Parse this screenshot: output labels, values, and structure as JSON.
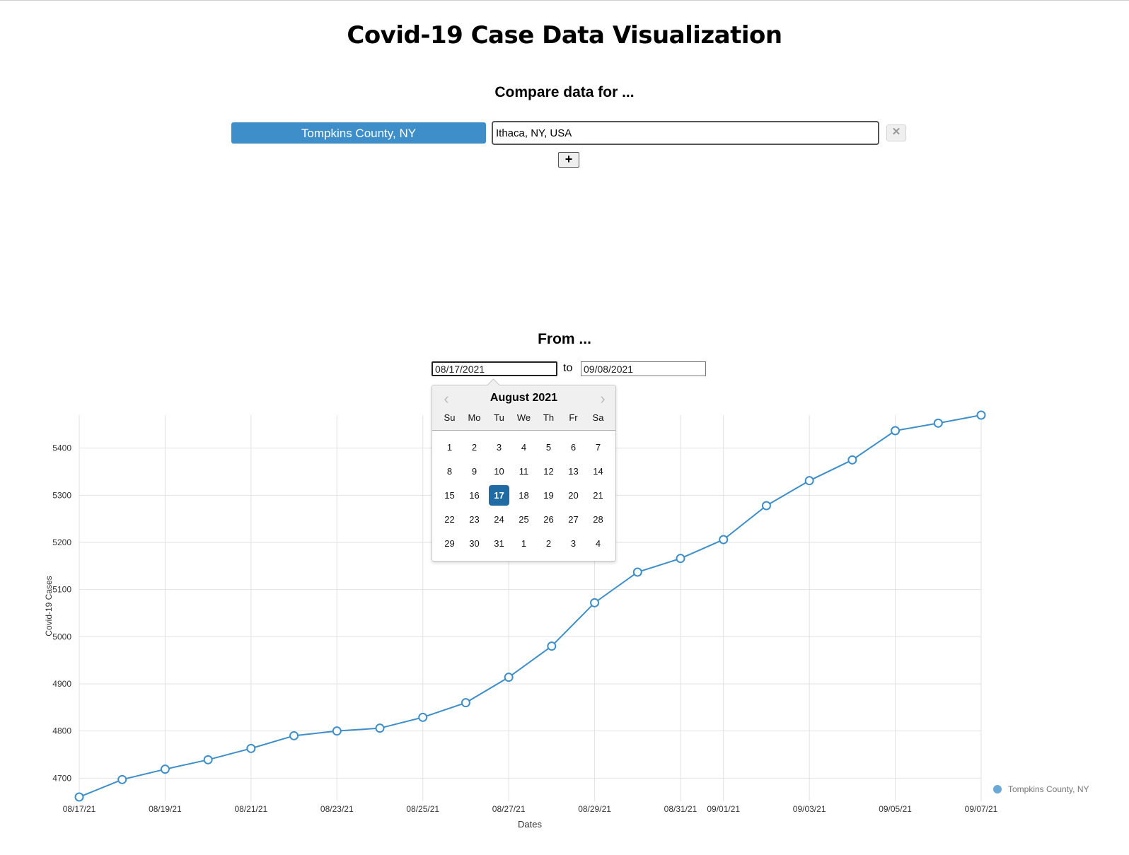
{
  "page": {
    "title": "Covid-19 Case Data Visualization",
    "compare_heading": "Compare data for ...",
    "from_heading": "From ..."
  },
  "compare": {
    "location_button_label": "Tompkins County, NY",
    "location_input_value": "Ithaca, NY, USA",
    "remove_label": "✕",
    "add_label": "+"
  },
  "date_range": {
    "from_value": "08/17/2021",
    "to_label": "to",
    "to_value": "09/08/2021"
  },
  "datepicker": {
    "month_label": "August 2021",
    "prev_icon": "‹",
    "next_icon": "›",
    "weekdays": [
      "Su",
      "Mo",
      "Tu",
      "We",
      "Th",
      "Fr",
      "Sa"
    ],
    "weeks": [
      [
        "1",
        "2",
        "3",
        "4",
        "5",
        "6",
        "7"
      ],
      [
        "8",
        "9",
        "10",
        "11",
        "12",
        "13",
        "14"
      ],
      [
        "15",
        "16",
        "17",
        "18",
        "19",
        "20",
        "21"
      ],
      [
        "22",
        "23",
        "24",
        "25",
        "26",
        "27",
        "28"
      ],
      [
        "29",
        "30",
        "31",
        "1",
        "2",
        "3",
        "4"
      ]
    ],
    "selected_day": "17",
    "accent_color": "#216ba5"
  },
  "chart_data": {
    "type": "line",
    "xlabel": "Dates",
    "ylabel": "Covid-19 Cases",
    "x_tick_labels": [
      "08/17/21",
      "08/19/21",
      "08/21/21",
      "08/23/21",
      "08/25/21",
      "08/27/21",
      "08/29/21",
      "08/31/21",
      "09/01/21",
      "09/03/21",
      "09/05/21",
      "09/07/21"
    ],
    "y_ticks": [
      4700,
      4800,
      4900,
      5000,
      5100,
      5200,
      5300,
      5400
    ],
    "ylim": [
      4660,
      5470
    ],
    "grid": true,
    "legend_position": "bottom-right",
    "series": [
      {
        "name": "Tompkins County, NY",
        "color": "#3d8ec9",
        "x": [
          "08/17/21",
          "08/18/21",
          "08/19/21",
          "08/20/21",
          "08/21/21",
          "08/22/21",
          "08/23/21",
          "08/24/21",
          "08/25/21",
          "08/26/21",
          "08/27/21",
          "08/28/21",
          "08/29/21",
          "08/30/21",
          "08/31/21",
          "09/01/21",
          "09/02/21",
          "09/03/21",
          "09/04/21",
          "09/05/21",
          "09/06/21",
          "09/07/21"
        ],
        "values": [
          4660,
          4697,
          4719,
          4739,
          4763,
          4790,
          4800,
          4806,
          4829,
          4860,
          4914,
          4980,
          5072,
          5137,
          5166,
          5206,
          5278,
          5331,
          5375,
          5437,
          5453,
          5470
        ]
      }
    ]
  }
}
